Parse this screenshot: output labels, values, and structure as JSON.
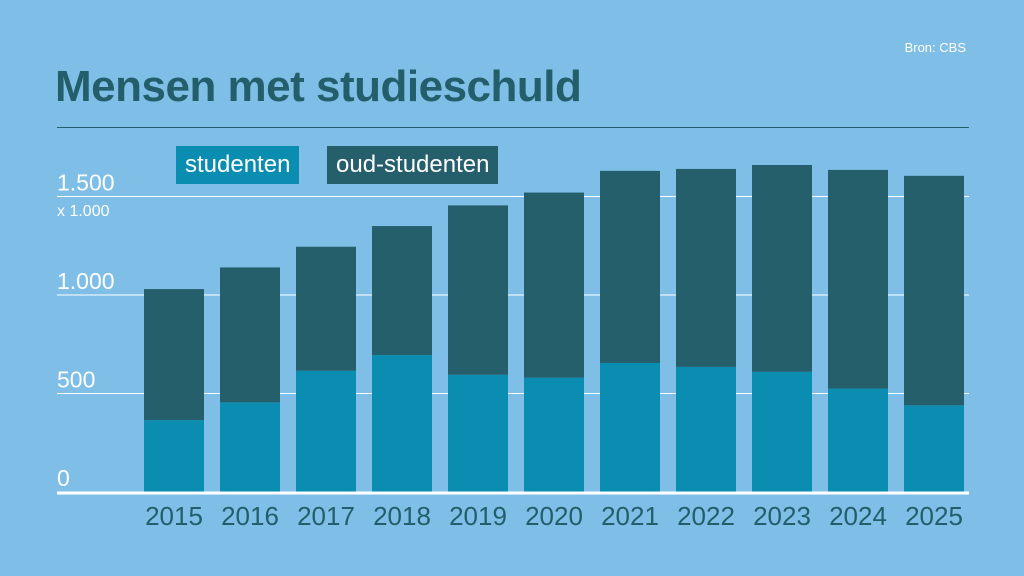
{
  "source": "Bron: CBS",
  "title": "Mensen met studieschuld",
  "unit_label": "x 1.000",
  "colors": {
    "background": "#7fbfe7",
    "studenten": "#0a8db1",
    "oud_studenten": "#255f6c",
    "title": "#235e6b",
    "grid": "#ffffff"
  },
  "chart_data": {
    "type": "bar",
    "stacked": true,
    "categories": [
      "2015",
      "2016",
      "2017",
      "2018",
      "2019",
      "2020",
      "2021",
      "2022",
      "2023",
      "2024",
      "2025"
    ],
    "series": [
      {
        "name": "studenten",
        "values": [
          365,
          455,
          615,
          695,
          595,
          580,
          655,
          635,
          610,
          525,
          440
        ]
      },
      {
        "name": "oud-studenten",
        "values": [
          665,
          685,
          630,
          655,
          860,
          940,
          975,
          1005,
          1050,
          1110,
          1165
        ]
      }
    ],
    "y_ticks": [
      0,
      500,
      1000,
      1500
    ],
    "y_tick_labels": [
      "0",
      "500",
      "1.000",
      "1.500"
    ],
    "ylim": [
      0,
      1500
    ],
    "grid": true,
    "legend_position": "top-left"
  }
}
